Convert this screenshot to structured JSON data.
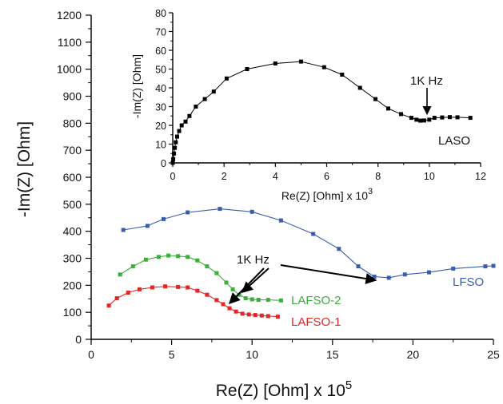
{
  "chart_data": [
    {
      "type": "line",
      "xlabel": "Re(Z) [Ohm] x 10",
      "xlabel_exp": "5",
      "ylabel": "-Im(Z) [Ohm]",
      "xlim": [
        0,
        25
      ],
      "ylim": [
        0,
        1200
      ],
      "x_ticks": [
        "0",
        "5",
        "10",
        "15",
        "20",
        "25"
      ],
      "y_ticks": [
        "0",
        "100",
        "200",
        "300",
        "400",
        "500",
        "600",
        "700",
        "800",
        "900",
        "1000",
        "1100",
        "1200"
      ],
      "grid": false,
      "series": [
        {
          "name": "LFSO",
          "color": "#3a5dae",
          "x": [
            2.0,
            3.5,
            4.5,
            6.0,
            8.0,
            10.0,
            11.8,
            13.8,
            15.4,
            16.6,
            17.6,
            18.5,
            19.5,
            21.0,
            22.5,
            24.5,
            25.0
          ],
          "y": [
            405,
            420,
            445,
            470,
            483,
            472,
            440,
            390,
            335,
            270,
            232,
            228,
            240,
            248,
            262,
            270,
            272
          ]
        },
        {
          "name": "LAFSO-2",
          "color": "#3cae3c",
          "x": [
            1.8,
            2.6,
            3.4,
            4.2,
            4.8,
            5.4,
            6.0,
            6.6,
            7.2,
            7.8,
            8.4,
            8.8,
            9.2,
            9.6,
            10.0,
            10.4,
            11.0,
            11.8
          ],
          "y": [
            240,
            270,
            295,
            305,
            310,
            308,
            305,
            292,
            270,
            245,
            210,
            185,
            165,
            152,
            148,
            146,
            146,
            144
          ]
        },
        {
          "name": "LAFSO-1",
          "color": "#e32626",
          "x": [
            1.1,
            1.6,
            2.3,
            3.0,
            3.8,
            4.6,
            5.4,
            6.0,
            6.6,
            7.2,
            7.8,
            8.2,
            8.6,
            9.0,
            9.4,
            9.8,
            10.2,
            10.6,
            11.0,
            11.6
          ],
          "y": [
            125,
            152,
            173,
            185,
            192,
            196,
            194,
            192,
            180,
            165,
            145,
            130,
            115,
            103,
            95,
            92,
            90,
            88,
            86,
            84
          ]
        }
      ],
      "annotations": [
        {
          "text": "LFSO",
          "color": "#3a5dae"
        },
        {
          "text": "LAFSO-2",
          "color": "#3cae3c"
        },
        {
          "text": "LAFSO-1",
          "color": "#e32626"
        },
        {
          "text": "1K Hz",
          "color": "#111111"
        }
      ]
    },
    {
      "type": "line",
      "xlabel": "Re(Z) [Ohm] x 10",
      "xlabel_exp": "3",
      "ylabel": "-Im(Z) [Ohm]",
      "xlim": [
        0,
        12
      ],
      "ylim": [
        0,
        80
      ],
      "x_ticks": [
        "0",
        "2",
        "4",
        "6",
        "8",
        "10",
        "12"
      ],
      "y_ticks": [
        "0",
        "10",
        "20",
        "30",
        "40",
        "50",
        "60",
        "70",
        "80"
      ],
      "grid": false,
      "series": [
        {
          "name": "LASO",
          "color": "#000000",
          "x": [
            0.0,
            0.02,
            0.05,
            0.08,
            0.12,
            0.17,
            0.25,
            0.35,
            0.5,
            0.65,
            0.9,
            1.25,
            1.6,
            2.1,
            2.9,
            4.0,
            5.0,
            5.9,
            6.6,
            7.3,
            7.9,
            8.4,
            8.9,
            9.3,
            9.5,
            9.65,
            9.8,
            10.0,
            10.2,
            10.5,
            10.8,
            11.1,
            11.6
          ],
          "y": [
            0,
            2,
            5,
            8,
            11,
            14,
            17,
            20,
            22,
            25,
            30,
            34,
            38,
            45,
            50,
            53,
            54,
            51,
            47,
            40,
            34,
            29,
            26,
            24,
            23,
            22.5,
            22.6,
            23,
            24,
            24.2,
            24.4,
            24.3,
            24
          ]
        }
      ],
      "annotations": [
        {
          "text": "LASO",
          "color": "#111111"
        },
        {
          "text": "1K Hz",
          "color": "#111111"
        }
      ]
    }
  ]
}
